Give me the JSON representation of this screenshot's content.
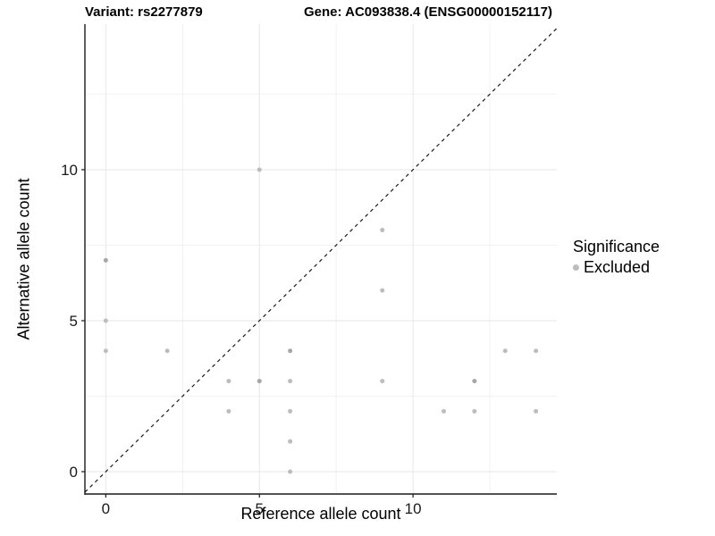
{
  "titles": {
    "variant": "Variant: rs2277879",
    "gene": "Gene: AC093838.4 (ENSG00000152117)"
  },
  "legend": {
    "title": "Significance",
    "items": [
      {
        "label": "Excluded",
        "color": "#bdbdbd"
      }
    ]
  },
  "style": {
    "background": "#ffffff",
    "axis_line_color": "#1a1a1a",
    "grid_major_color": "#e6e6e6",
    "grid_minor_color": "#f2f2f2",
    "tick_color": "#1a1a1a",
    "tick_label_color": "#1a1a1a",
    "point_color": "#bdbdbd",
    "point_overlap_color": "#a6a6a6",
    "identity_line_color": "#1a1a1a"
  },
  "chart_data": {
    "type": "scatter",
    "title": "",
    "xlabel": "Reference allele count",
    "ylabel": "Alternative allele count",
    "xlim": [
      -0.68,
      14.68
    ],
    "ylim": [
      -0.74,
      14.82
    ],
    "x_major_ticks": [
      0,
      5,
      10
    ],
    "y_major_ticks": [
      0,
      5,
      10
    ],
    "x_minor_ticks": [
      2.5,
      7.5,
      12.5
    ],
    "y_minor_ticks": [
      2.5,
      7.5,
      12.5
    ],
    "grid": true,
    "legend_position": "right",
    "identity_line": {
      "slope": 1,
      "intercept": 0,
      "dash": "dashed"
    },
    "series": [
      {
        "name": "Excluded",
        "points": [
          {
            "x": 0,
            "y": 4,
            "overlap": false
          },
          {
            "x": 0,
            "y": 5,
            "overlap": false
          },
          {
            "x": 0,
            "y": 7,
            "overlap": true
          },
          {
            "x": 2,
            "y": 4,
            "overlap": false
          },
          {
            "x": 4,
            "y": 2,
            "overlap": false
          },
          {
            "x": 4,
            "y": 3,
            "overlap": false
          },
          {
            "x": 5,
            "y": 3,
            "overlap": true
          },
          {
            "x": 5,
            "y": 10,
            "overlap": false
          },
          {
            "x": 6,
            "y": 0,
            "overlap": false
          },
          {
            "x": 6,
            "y": 1,
            "overlap": false
          },
          {
            "x": 6,
            "y": 2,
            "overlap": false
          },
          {
            "x": 6,
            "y": 3,
            "overlap": false
          },
          {
            "x": 6,
            "y": 4,
            "overlap": true
          },
          {
            "x": 9,
            "y": 3,
            "overlap": false
          },
          {
            "x": 9,
            "y": 6,
            "overlap": false
          },
          {
            "x": 9,
            "y": 8,
            "overlap": false
          },
          {
            "x": 11,
            "y": 2,
            "overlap": false
          },
          {
            "x": 12,
            "y": 2,
            "overlap": false
          },
          {
            "x": 12,
            "y": 3,
            "overlap": true
          },
          {
            "x": 13,
            "y": 4,
            "overlap": false
          },
          {
            "x": 14,
            "y": 2,
            "overlap": false
          },
          {
            "x": 14,
            "y": 4,
            "overlap": false
          }
        ]
      }
    ]
  }
}
